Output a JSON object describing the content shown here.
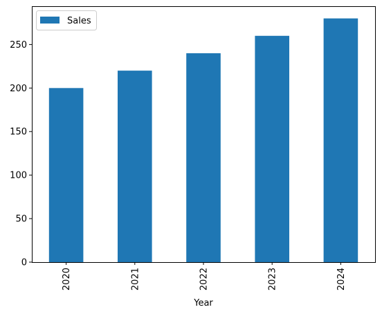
{
  "chart_data": {
    "type": "bar",
    "categories": [
      "2020",
      "2021",
      "2022",
      "2023",
      "2024"
    ],
    "series": [
      {
        "name": "Sales",
        "values": [
          200,
          220,
          240,
          260,
          280
        ],
        "color": "#1f77b4"
      }
    ],
    "xlabel": "Year",
    "ylabel": "",
    "ylim": [
      0,
      294
    ],
    "yticks": [
      0,
      50,
      100,
      150,
      200,
      250
    ],
    "grid": false,
    "legend": "top-left",
    "xtick_rotation": "vertical"
  }
}
